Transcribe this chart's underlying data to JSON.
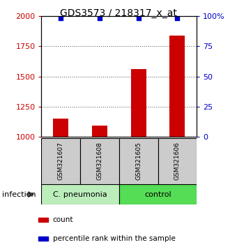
{
  "title": "GDS3573 / 218317_x_at",
  "samples": [
    "GSM321607",
    "GSM321608",
    "GSM321605",
    "GSM321606"
  ],
  "bar_values": [
    1150,
    1095,
    1560,
    1840
  ],
  "percentile_values": [
    98,
    98,
    98,
    98
  ],
  "ylim_left": [
    1000,
    2000
  ],
  "ylim_right": [
    0,
    100
  ],
  "yticks_left": [
    1000,
    1250,
    1500,
    1750,
    2000
  ],
  "yticks_right": [
    0,
    25,
    50,
    75,
    100
  ],
  "bar_color": "#cc0000",
  "percentile_color": "#0000cc",
  "groups": [
    {
      "label": "C. pneumonia",
      "color": "#bbeebb"
    },
    {
      "label": "control",
      "color": "#55dd55"
    }
  ],
  "infection_label": "infection",
  "legend_count_label": "count",
  "legend_percentile_label": "percentile rank within the sample",
  "sample_box_color": "#cccccc",
  "dotted_line_color": "#666666",
  "left_axis_color": "#cc0000",
  "right_axis_color": "#0000cc",
  "title_fontsize": 10
}
